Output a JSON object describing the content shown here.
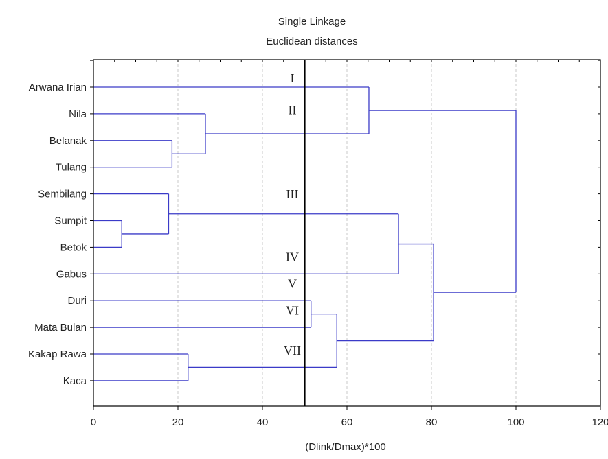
{
  "chart_data": {
    "type": "dendrogram",
    "title": "Single Linkage",
    "subtitle": "Euclidean distances",
    "xlabel": "(Dlink/Dmax)*100",
    "xlim": [
      0,
      120
    ],
    "xticks": [
      0,
      20,
      40,
      60,
      80,
      100,
      120
    ],
    "grid": "vertical dashed",
    "leaves": [
      "Arwana Irian",
      "Nila",
      "Belanak",
      "Tulang",
      "Sembilang",
      "Sumpit",
      "Betok",
      "Gabus",
      "Duri",
      "Mata Bulan",
      "Kakap Rawa",
      "Kaca"
    ],
    "merges": [
      {
        "id": "m1",
        "left": "Sumpit",
        "right": "Betok",
        "height": 6.7
      },
      {
        "id": "m2",
        "left": "Sembilang",
        "right": "m1",
        "height": 17.8
      },
      {
        "id": "m3",
        "left": "Belanak",
        "right": "Tulang",
        "height": 18.6
      },
      {
        "id": "m4",
        "left": "Kakap Rawa",
        "right": "Kaca",
        "height": 22.4
      },
      {
        "id": "m5",
        "left": "Nila",
        "right": "m3",
        "height": 26.5
      },
      {
        "id": "m6",
        "left": "Duri",
        "right": "Mata Bulan",
        "height": 51.5
      },
      {
        "id": "m7",
        "left": "m6",
        "right": "m4",
        "height": 57.6
      },
      {
        "id": "m8",
        "left": "Arwana Irian",
        "right": "m5",
        "height": 65.2
      },
      {
        "id": "m9",
        "left": "m2",
        "right": "Gabus",
        "height": 72.2
      },
      {
        "id": "m10",
        "left": "m9",
        "right": "m7",
        "height": 80.5
      },
      {
        "id": "m11",
        "left": "m8",
        "right": "m10",
        "height": 100
      }
    ],
    "cut_line": 50,
    "cluster_labels": [
      {
        "text": "I",
        "at": 0
      },
      {
        "text": "II",
        "at": 1.2
      },
      {
        "text": "III",
        "at": 4.35
      },
      {
        "text": "IV",
        "at": 6.7
      },
      {
        "text": "V",
        "at": 7.7
      },
      {
        "text": "VI",
        "at": 8.7
      },
      {
        "text": "VII",
        "at": 10.2
      }
    ],
    "colors": {
      "lines": "#3b3bc8",
      "cut_line": "#000000",
      "grid": "#c8c8c8",
      "frame": "#000000"
    }
  }
}
